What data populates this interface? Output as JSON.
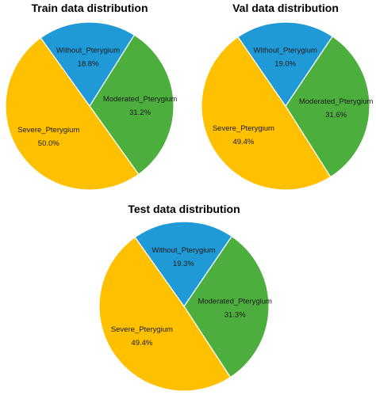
{
  "chart_data": [
    {
      "type": "pie",
      "title": "Train data distribution",
      "labels": [
        "Without_Pterygium",
        "Severe_Pterygium",
        "Moderated_Pterygium"
      ],
      "values": [
        18.8,
        50.0,
        31.2
      ],
      "value_labels": [
        "18.8%",
        "50.0%",
        "31.2%"
      ],
      "colors": [
        "#1f9ad6",
        "#ffc000",
        "#4cae3c"
      ]
    },
    {
      "type": "pie",
      "title": "Val data distribution",
      "labels": [
        "Without_Pterygium",
        "Severe_Pterygium",
        "Moderated_Pterygium"
      ],
      "values": [
        19.0,
        49.4,
        31.6
      ],
      "value_labels": [
        "19.0%",
        "49.4%",
        "31.6%"
      ],
      "colors": [
        "#1f9ad6",
        "#ffc000",
        "#4cae3c"
      ]
    },
    {
      "type": "pie",
      "title": "Test data distribution",
      "labels": [
        "Without_Pterygium",
        "Severe_Pterygium",
        "Moderated_Pterygium"
      ],
      "values": [
        19.3,
        49.4,
        31.3
      ],
      "value_labels": [
        "19.3%",
        "49.4%",
        "31.3%"
      ],
      "colors": [
        "#1f9ad6",
        "#ffc000",
        "#4cae3c"
      ]
    }
  ]
}
